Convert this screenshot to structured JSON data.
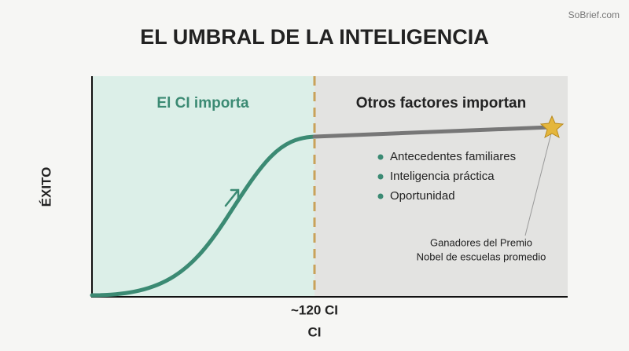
{
  "header": {
    "title": "EL UMBRAL DE LA INTELIGENCIA",
    "watermark": "SoBrief.com"
  },
  "axes": {
    "y_label": "ÉXITO",
    "x_label": "CI",
    "threshold_label": "~120 CI"
  },
  "regions": {
    "left": "El CI importa",
    "right": "Otros factores importan"
  },
  "bullets": [
    "Antecedentes familiares",
    "Inteligencia práctica",
    "Oportunidad"
  ],
  "annotation": [
    "Ganadores del Premio",
    "Nobel de escuelas promedio"
  ]
}
